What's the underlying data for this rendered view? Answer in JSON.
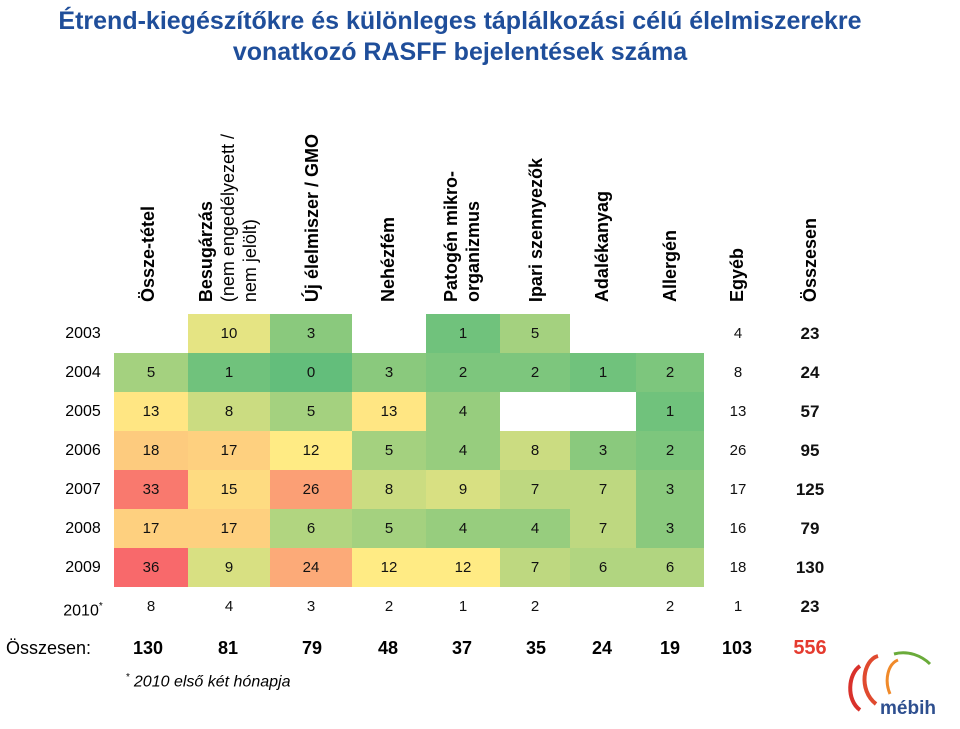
{
  "title": "Étrend-kiegészítőkre és különleges táplálkozási célú élelmiszerekre vonatkozó RASFF bejelentések száma",
  "chart_data": {
    "type": "table",
    "columns": [
      {
        "line1": "Össze-tétel",
        "line2": ""
      },
      {
        "line1": "Besugárzás",
        "line2": "(nem engedélyezett /\nnem jelölt)"
      },
      {
        "line1": "Új élelmiszer / GMO",
        "line2": ""
      },
      {
        "line1": "Nehézfém",
        "line2": ""
      },
      {
        "line1": "Patogén mikro-",
        "line2": "organizmus"
      },
      {
        "line1": "Ipari szennyezők",
        "line2": ""
      },
      {
        "line1": "Adalékanyag",
        "line2": ""
      },
      {
        "line1": "Allergén",
        "line2": ""
      },
      {
        "line1": "Egyéb",
        "line2": ""
      },
      {
        "line1": "Összesen",
        "line2": ""
      }
    ],
    "rows": [
      {
        "year": "2003",
        "mark": "",
        "values": [
          null,
          10,
          3,
          null,
          1,
          5,
          null,
          null,
          4
        ],
        "total": 23
      },
      {
        "year": "2004",
        "mark": "",
        "values": [
          5,
          1,
          0,
          3,
          2,
          2,
          1,
          2,
          8
        ],
        "total": 24
      },
      {
        "year": "2005",
        "mark": "",
        "values": [
          13,
          8,
          5,
          13,
          4,
          null,
          null,
          1,
          13
        ],
        "total": 57
      },
      {
        "year": "2006",
        "mark": "",
        "values": [
          18,
          17,
          12,
          5,
          4,
          8,
          3,
          2,
          26
        ],
        "total": 95
      },
      {
        "year": "2007",
        "mark": "",
        "values": [
          33,
          15,
          26,
          8,
          9,
          7,
          7,
          3,
          17
        ],
        "total": 125
      },
      {
        "year": "2008",
        "mark": "",
        "values": [
          17,
          17,
          6,
          5,
          4,
          4,
          7,
          3,
          16
        ],
        "total": 79
      },
      {
        "year": "2009",
        "mark": "",
        "values": [
          36,
          9,
          24,
          12,
          12,
          7,
          6,
          6,
          18
        ],
        "total": 130
      },
      {
        "year": "2010",
        "mark": "*",
        "values": [
          8,
          4,
          3,
          2,
          1,
          2,
          null,
          2,
          1
        ],
        "total": 23
      }
    ],
    "column_totals_label": "Összesen:",
    "column_totals": [
      130,
      81,
      79,
      48,
      37,
      35,
      24,
      19,
      103
    ],
    "grand_total": 556,
    "heatmap_colors": {
      "low": "#63be7b",
      "mid": "#ffeb84",
      "high": "#f8696b"
    }
  },
  "footnote": {
    "mark": "*",
    "text": "2010 első két hónapja"
  },
  "logo": {
    "text": "mébih"
  },
  "colors": {
    "title": "#1f4e9a",
    "grand_total": "#e53b2f",
    "logo": "#2e4f8f"
  }
}
